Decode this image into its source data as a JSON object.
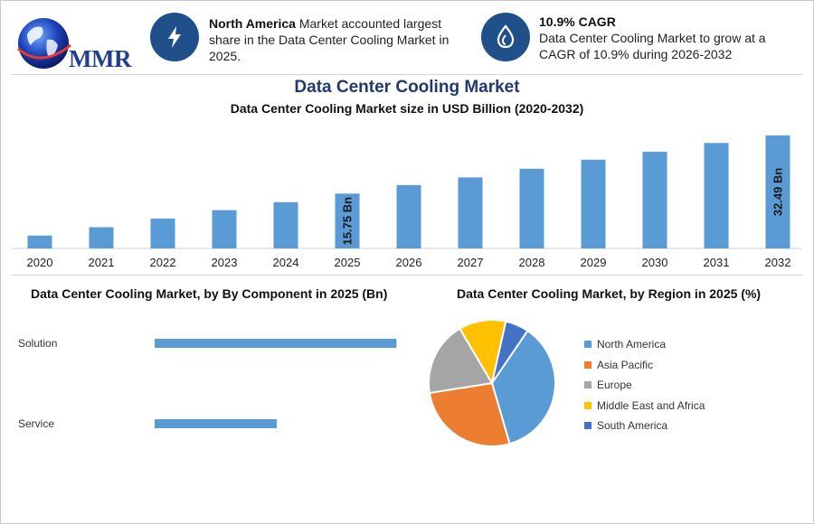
{
  "header": {
    "logo_text": "MMR",
    "card1": {
      "icon": "lightning-icon",
      "bold": "North America",
      "text": " Market accounted largest share in the Data Center Cooling Market in 2025."
    },
    "card2": {
      "icon": "cooling-drop-icon",
      "bold": "10.9% CAGR",
      "text": "Data Center Cooling Market to grow at a CAGR of 10.9% during 2026-2032"
    }
  },
  "titles": {
    "main": "Data Center Cooling Market",
    "sub": "Data Center Cooling Market size in USD Billion (2020-2032)"
  },
  "colors": {
    "bar": "#5b9bd5",
    "accent": "#20508a",
    "title": "#1f3a6e"
  },
  "chart_data": [
    {
      "type": "bar",
      "title": "Data Center Cooling Market size in USD Billion (2020-2032)",
      "categories": [
        "2020",
        "2021",
        "2022",
        "2023",
        "2024",
        "2025",
        "2026",
        "2027",
        "2028",
        "2029",
        "2030",
        "2031",
        "2032"
      ],
      "values": [
        3.7,
        6.1,
        8.6,
        11.0,
        13.3,
        15.75,
        18.2,
        20.4,
        22.9,
        25.5,
        27.8,
        30.3,
        32.49
      ],
      "data_labels": [
        {
          "index": 5,
          "text": "15.75 Bn"
        },
        {
          "index": 12,
          "text": "32.49 Bn"
        }
      ],
      "ylim": [
        0,
        34
      ]
    },
    {
      "type": "bar",
      "orientation": "horizontal",
      "title": "Data Center Cooling Market, by By Component in 2025 (Bn)",
      "categories": [
        "Solution",
        "Service"
      ],
      "values": [
        9.9,
        5.0
      ],
      "xlim": [
        0,
        10
      ]
    },
    {
      "type": "pie",
      "title": "Data Center Cooling Market, by Region in 2025 (%)",
      "labels": [
        "North America",
        "Asia Pacific",
        "Europe",
        "Middle East and Africa",
        "South America"
      ],
      "values": [
        36,
        27,
        19,
        12,
        6
      ],
      "colors": [
        "#5b9bd5",
        "#ed7d31",
        "#a5a5a5",
        "#ffc000",
        "#4472c4"
      ],
      "legend_position": "right"
    }
  ]
}
